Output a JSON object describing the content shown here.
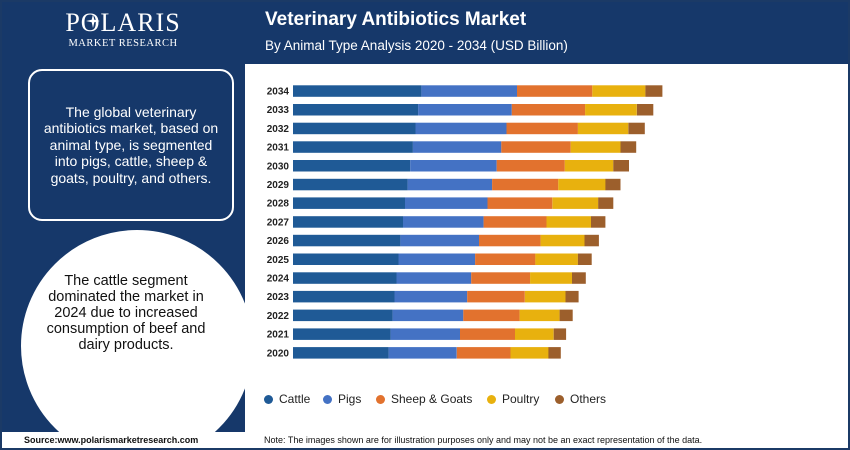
{
  "brand": {
    "name": "POLARIS",
    "tagline": "MARKET RESEARCH"
  },
  "header": {
    "title": "Veterinary Antibiotics Market",
    "subtitle": "By Animal Type Analysis 2020 - 2034 (USD Billion)"
  },
  "sidebar": {
    "box_text": "The global veterinary antibiotics market, based on animal type, is segmented into pigs, cattle, sheep & goats, poultry, and others.",
    "circle_text": "The cattle segment dominated the market in 2024 due to increased consumption of beef and dairy products."
  },
  "footer": {
    "source": "Source:www.polarismarketresearch.com",
    "note": "Note: The images shown are for illustration purposes only and may not be an exact representation of the data."
  },
  "colors": {
    "navy": "#16386a",
    "cattle": "#1f5a96",
    "pigs": "#4472c4",
    "sheep_goats": "#e2722e",
    "poultry": "#e8b10e",
    "others": "#9c5f2c"
  },
  "chart_data": {
    "type": "bar",
    "orientation": "horizontal",
    "stacked": true,
    "categories": [
      "2034",
      "2033",
      "2032",
      "2031",
      "2030",
      "2029",
      "2028",
      "2027",
      "2026",
      "2025",
      "2024",
      "2023",
      "2022",
      "2021",
      "2020"
    ],
    "series": [
      {
        "name": "Cattle",
        "color": "#1f5a96",
        "values": [
          196,
          191,
          187,
          183,
          179,
          175,
          171,
          168,
          164,
          161,
          158,
          155,
          152,
          149,
          146
        ]
      },
      {
        "name": "Pigs",
        "color": "#4472c4",
        "values": [
          146,
          143,
          139,
          135,
          132,
          129,
          126,
          123,
          120,
          117,
          114,
          111,
          108,
          106,
          104
        ]
      },
      {
        "name": "Sheep & Goats",
        "color": "#e2722e",
        "values": [
          115,
          112,
          109,
          106,
          104,
          101,
          99,
          96,
          94,
          92,
          90,
          88,
          86,
          84,
          82
        ]
      },
      {
        "name": "Poultry",
        "color": "#e8b10e",
        "values": [
          81,
          79,
          77,
          76,
          74,
          72,
          70,
          68,
          67,
          65,
          64,
          62,
          61,
          59,
          58
        ]
      },
      {
        "name": "Others",
        "color": "#9c5f2c",
        "values": [
          26,
          25,
          25,
          24,
          24,
          23,
          23,
          22,
          22,
          21,
          21,
          20,
          20,
          19,
          19
        ]
      }
    ],
    "legend_position": "bottom",
    "grid": false,
    "xaxis_visible": false
  }
}
